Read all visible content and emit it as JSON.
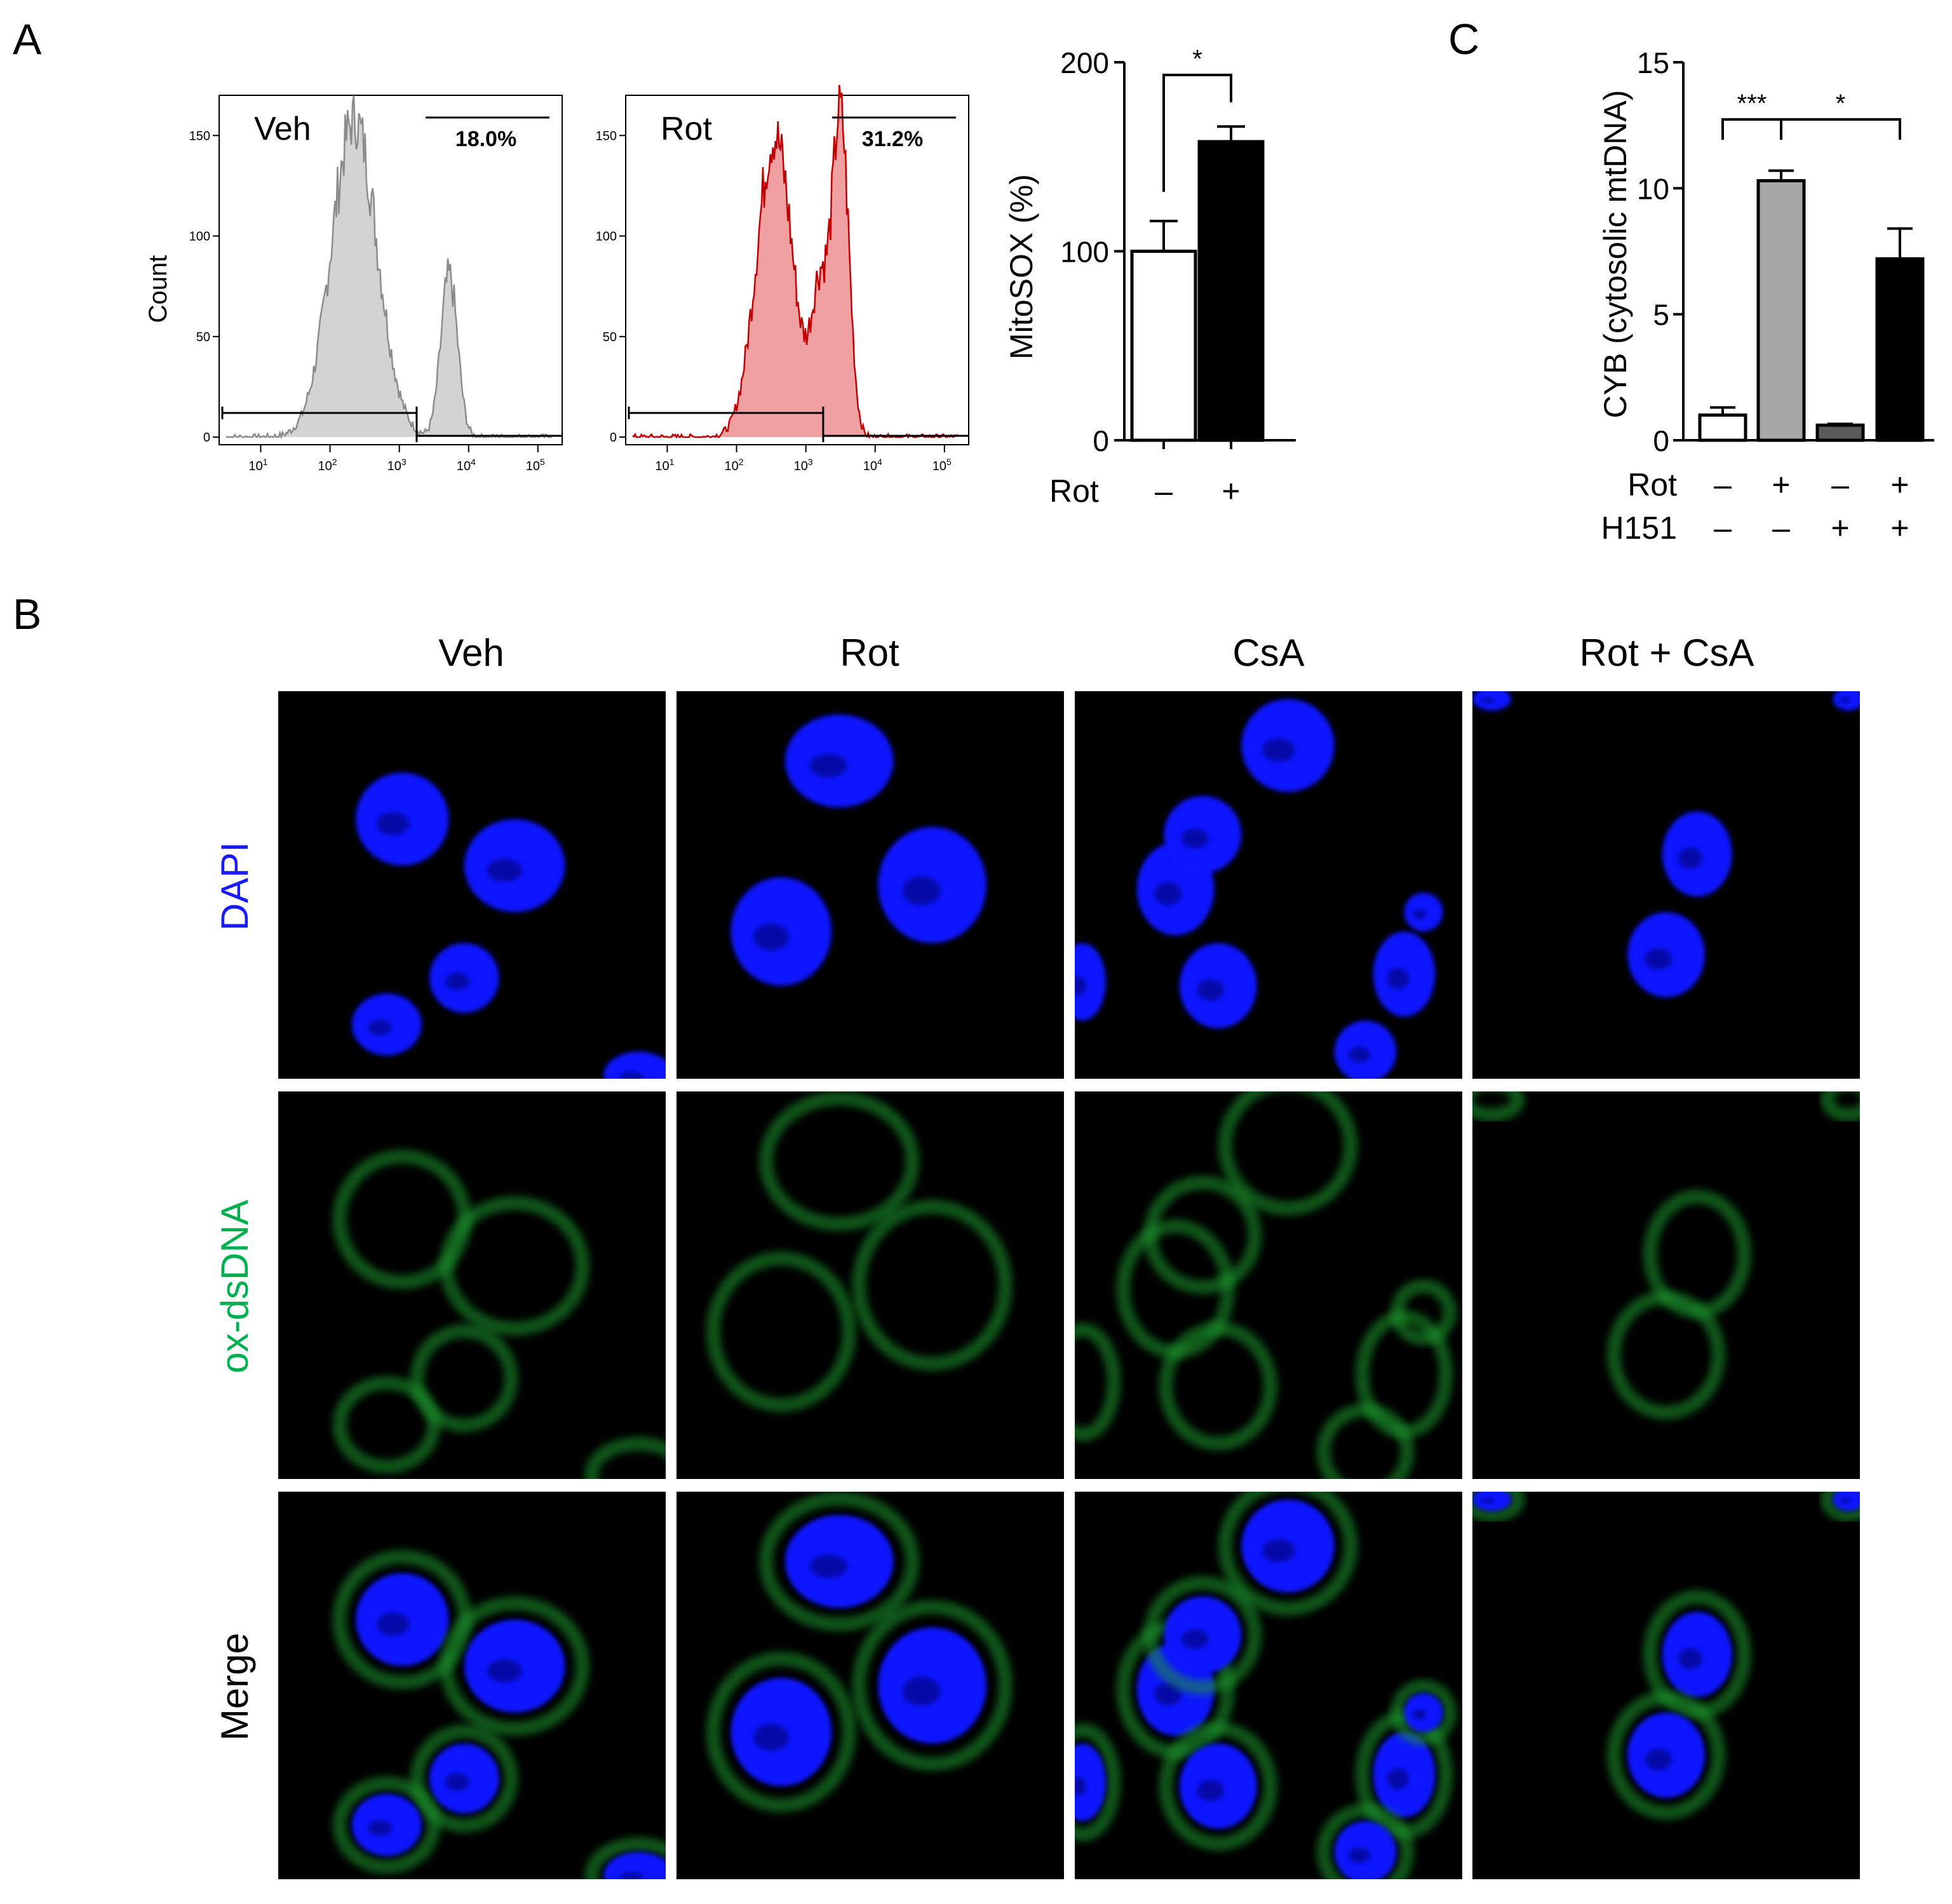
{
  "panel_labels": {
    "a": "A",
    "b": "B",
    "c": "C"
  },
  "flow": {
    "y_label": "Count",
    "y_ticks": [
      "0",
      "50",
      "100",
      "150"
    ],
    "x_ticks": [
      "10",
      "10",
      "10",
      "10",
      "10"
    ],
    "x_tick_exponents": [
      "1",
      "2",
      "3",
      "4",
      "5"
    ],
    "histograms": [
      {
        "label": "Veh",
        "gate_percent": "18.0%",
        "fill": "#d3d3d3",
        "stroke": "#8c8c8c",
        "peaks": [
          {
            "log_center": 2.35,
            "height": 158,
            "width": 0.33
          },
          {
            "log_center": 3.72,
            "height": 80,
            "width": 0.12
          }
        ]
      },
      {
        "label": "Rot",
        "gate_percent": "31.2%",
        "fill": "#f0a0a0",
        "stroke": "#c00000",
        "peaks": [
          {
            "log_center": 2.55,
            "height": 150,
            "width": 0.26
          },
          {
            "log_center": 3.5,
            "height": 160,
            "width": 0.12
          },
          {
            "log_center": 3.2,
            "height": 70,
            "width": 0.12
          }
        ]
      }
    ]
  },
  "chart_data": [
    {
      "type": "bar",
      "title": "",
      "ylabel": "MitoSOX (%)",
      "ylim": [
        0,
        200
      ],
      "y_ticks": [
        "0",
        "100",
        "200"
      ],
      "condition_label": "Rot",
      "categories": [
        "–",
        "+"
      ],
      "values": [
        100,
        158
      ],
      "errors": [
        16,
        8
      ],
      "bar_colors": [
        "#ffffff",
        "#000000"
      ],
      "significance": [
        {
          "from": 0,
          "to": 1,
          "label": "*"
        }
      ]
    },
    {
      "type": "bar",
      "title": "",
      "ylabel": "CYB (cytosolic mtDNA)",
      "ylim": [
        0,
        15
      ],
      "y_ticks": [
        "0",
        "5",
        "10",
        "15"
      ],
      "conditions": [
        {
          "name": "Rot",
          "values": [
            "–",
            "+",
            "–",
            "+"
          ]
        },
        {
          "name": "H151",
          "values": [
            "–",
            "–",
            "+",
            "+"
          ]
        }
      ],
      "values": [
        1.0,
        10.3,
        0.6,
        7.2
      ],
      "errors": [
        0.3,
        0.4,
        0.05,
        1.2
      ],
      "bar_colors": [
        "#ffffff",
        "#a6a6a6",
        "#595959",
        "#000000"
      ],
      "significance": [
        {
          "from": 0,
          "to": 1,
          "label": "***"
        },
        {
          "from": 1,
          "to": 3,
          "label": "*"
        }
      ]
    }
  ],
  "microscopy": {
    "columns": [
      "Veh",
      "Rot",
      "CsA",
      "Rot + CsA"
    ],
    "rows": [
      {
        "label": "DAPI",
        "color": "#1a1aff"
      },
      {
        "label": "ox-dsDNA",
        "color": "#00b050"
      },
      {
        "label": "Merge",
        "color": "#000000"
      }
    ]
  }
}
